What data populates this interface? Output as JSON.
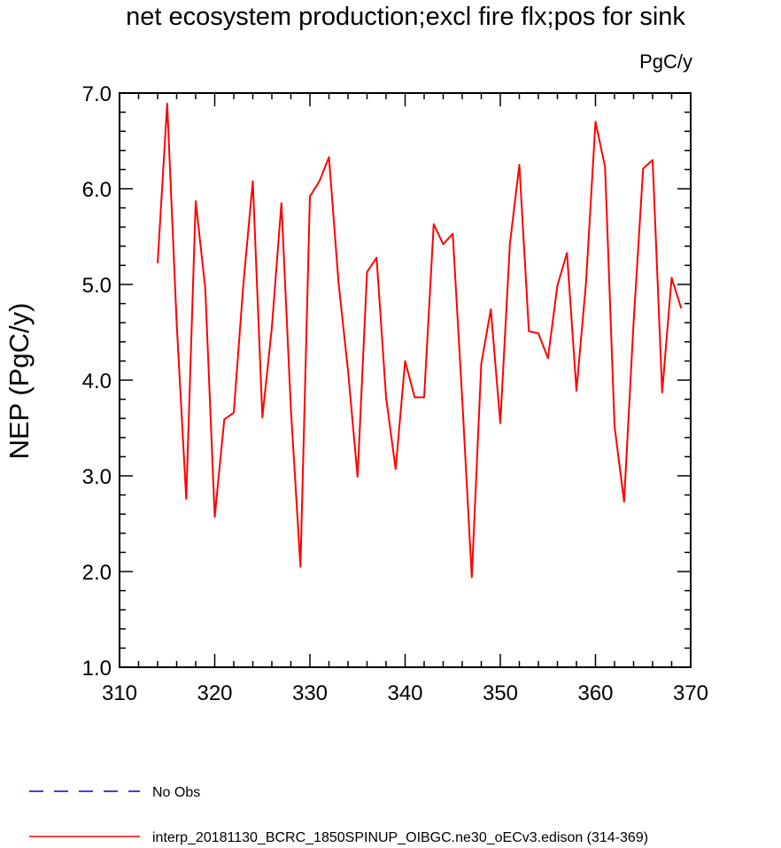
{
  "chart_data": {
    "type": "line",
    "title": "net ecosystem production;excl fire flx;pos for sink",
    "units_label": "PgC/y",
    "ylabel": "NEP  (PgC/y)",
    "xlabel": "",
    "xlim": [
      310,
      370
    ],
    "ylim": [
      1.0,
      7.0
    ],
    "xticks": [
      310,
      320,
      330,
      340,
      350,
      360,
      370
    ],
    "xtick_labels": [
      "310",
      "320",
      "330",
      "340",
      "350",
      "360",
      "370"
    ],
    "yticks": [
      1.0,
      2.0,
      3.0,
      4.0,
      5.0,
      6.0,
      7.0
    ],
    "ytick_labels": [
      "1.0",
      "2.0",
      "3.0",
      "4.0",
      "5.0",
      "6.0",
      "7.0"
    ],
    "grid": false,
    "legend_position": "bottom-left",
    "legend": [
      {
        "label": "No Obs",
        "color": "#0000cc",
        "style": "dashed"
      },
      {
        "label": "interp_20181130_BCRC_1850SPINUP_OIBGC.ne30_oECv3.edison (314-369)",
        "color": "#ff0000",
        "style": "solid"
      }
    ],
    "series": [
      {
        "name": "interp_20181130_BCRC_1850SPINUP_OIBGC.ne30_oECv3.edison (314-369)",
        "color": "#ff0000",
        "x": [
          314,
          315,
          316,
          317,
          318,
          319,
          320,
          321,
          322,
          323,
          324,
          325,
          326,
          327,
          328,
          329,
          330,
          331,
          332,
          333,
          334,
          335,
          336,
          337,
          338,
          339,
          340,
          341,
          342,
          343,
          344,
          345,
          346,
          347,
          348,
          349,
          350,
          351,
          352,
          353,
          354,
          355,
          356,
          357,
          358,
          359,
          360,
          361,
          362,
          363,
          364,
          365,
          366,
          367,
          368,
          369
        ],
        "y": [
          5.22,
          6.89,
          4.6,
          2.76,
          5.87,
          4.96,
          2.57,
          3.59,
          3.66,
          5.0,
          6.08,
          3.61,
          4.55,
          5.85,
          3.7,
          2.05,
          5.92,
          6.08,
          6.33,
          5.02,
          4.1,
          2.99,
          5.13,
          5.28,
          3.82,
          3.07,
          4.2,
          3.82,
          3.82,
          5.63,
          5.42,
          5.53,
          3.8,
          1.94,
          4.17,
          4.74,
          3.55,
          5.42,
          6.25,
          4.51,
          4.49,
          4.23,
          4.99,
          5.33,
          3.89,
          5.02,
          6.7,
          6.23,
          3.52,
          2.73,
          4.6,
          6.21,
          6.3,
          3.87,
          5.07,
          4.75
        ]
      }
    ]
  }
}
